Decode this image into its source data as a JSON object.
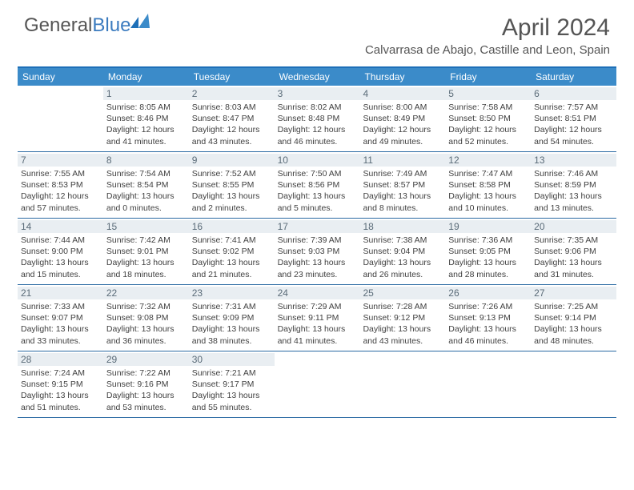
{
  "brand": {
    "part1": "General",
    "part2": "Blue"
  },
  "header": {
    "month_title": "April 2024",
    "location": "Calvarrasa de Abajo, Castille and Leon, Spain"
  },
  "colors": {
    "header_bar": "#3b8bc9",
    "header_border": "#1d6fb8",
    "row_border": "#2b6aa3",
    "daynum_bg": "#e9eef2",
    "daynum_text": "#5a6b78",
    "text": "#404040",
    "brand_blue": "#3b7bbf",
    "brand_gray": "#555555",
    "background": "#ffffff"
  },
  "days_of_week": [
    "Sunday",
    "Monday",
    "Tuesday",
    "Wednesday",
    "Thursday",
    "Friday",
    "Saturday"
  ],
  "weeks": [
    [
      null,
      {
        "n": "1",
        "sunrise": "8:05 AM",
        "sunset": "8:46 PM",
        "day_h": 12,
        "day_m": 41
      },
      {
        "n": "2",
        "sunrise": "8:03 AM",
        "sunset": "8:47 PM",
        "day_h": 12,
        "day_m": 43
      },
      {
        "n": "3",
        "sunrise": "8:02 AM",
        "sunset": "8:48 PM",
        "day_h": 12,
        "day_m": 46
      },
      {
        "n": "4",
        "sunrise": "8:00 AM",
        "sunset": "8:49 PM",
        "day_h": 12,
        "day_m": 49
      },
      {
        "n": "5",
        "sunrise": "7:58 AM",
        "sunset": "8:50 PM",
        "day_h": 12,
        "day_m": 52
      },
      {
        "n": "6",
        "sunrise": "7:57 AM",
        "sunset": "8:51 PM",
        "day_h": 12,
        "day_m": 54
      }
    ],
    [
      {
        "n": "7",
        "sunrise": "7:55 AM",
        "sunset": "8:53 PM",
        "day_h": 12,
        "day_m": 57
      },
      {
        "n": "8",
        "sunrise": "7:54 AM",
        "sunset": "8:54 PM",
        "day_h": 13,
        "day_m": 0
      },
      {
        "n": "9",
        "sunrise": "7:52 AM",
        "sunset": "8:55 PM",
        "day_h": 13,
        "day_m": 2
      },
      {
        "n": "10",
        "sunrise": "7:50 AM",
        "sunset": "8:56 PM",
        "day_h": 13,
        "day_m": 5
      },
      {
        "n": "11",
        "sunrise": "7:49 AM",
        "sunset": "8:57 PM",
        "day_h": 13,
        "day_m": 8
      },
      {
        "n": "12",
        "sunrise": "7:47 AM",
        "sunset": "8:58 PM",
        "day_h": 13,
        "day_m": 10
      },
      {
        "n": "13",
        "sunrise": "7:46 AM",
        "sunset": "8:59 PM",
        "day_h": 13,
        "day_m": 13
      }
    ],
    [
      {
        "n": "14",
        "sunrise": "7:44 AM",
        "sunset": "9:00 PM",
        "day_h": 13,
        "day_m": 15
      },
      {
        "n": "15",
        "sunrise": "7:42 AM",
        "sunset": "9:01 PM",
        "day_h": 13,
        "day_m": 18
      },
      {
        "n": "16",
        "sunrise": "7:41 AM",
        "sunset": "9:02 PM",
        "day_h": 13,
        "day_m": 21
      },
      {
        "n": "17",
        "sunrise": "7:39 AM",
        "sunset": "9:03 PM",
        "day_h": 13,
        "day_m": 23
      },
      {
        "n": "18",
        "sunrise": "7:38 AM",
        "sunset": "9:04 PM",
        "day_h": 13,
        "day_m": 26
      },
      {
        "n": "19",
        "sunrise": "7:36 AM",
        "sunset": "9:05 PM",
        "day_h": 13,
        "day_m": 28
      },
      {
        "n": "20",
        "sunrise": "7:35 AM",
        "sunset": "9:06 PM",
        "day_h": 13,
        "day_m": 31
      }
    ],
    [
      {
        "n": "21",
        "sunrise": "7:33 AM",
        "sunset": "9:07 PM",
        "day_h": 13,
        "day_m": 33
      },
      {
        "n": "22",
        "sunrise": "7:32 AM",
        "sunset": "9:08 PM",
        "day_h": 13,
        "day_m": 36
      },
      {
        "n": "23",
        "sunrise": "7:31 AM",
        "sunset": "9:09 PM",
        "day_h": 13,
        "day_m": 38
      },
      {
        "n": "24",
        "sunrise": "7:29 AM",
        "sunset": "9:11 PM",
        "day_h": 13,
        "day_m": 41
      },
      {
        "n": "25",
        "sunrise": "7:28 AM",
        "sunset": "9:12 PM",
        "day_h": 13,
        "day_m": 43
      },
      {
        "n": "26",
        "sunrise": "7:26 AM",
        "sunset": "9:13 PM",
        "day_h": 13,
        "day_m": 46
      },
      {
        "n": "27",
        "sunrise": "7:25 AM",
        "sunset": "9:14 PM",
        "day_h": 13,
        "day_m": 48
      }
    ],
    [
      {
        "n": "28",
        "sunrise": "7:24 AM",
        "sunset": "9:15 PM",
        "day_h": 13,
        "day_m": 51
      },
      {
        "n": "29",
        "sunrise": "7:22 AM",
        "sunset": "9:16 PM",
        "day_h": 13,
        "day_m": 53
      },
      {
        "n": "30",
        "sunrise": "7:21 AM",
        "sunset": "9:17 PM",
        "day_h": 13,
        "day_m": 55
      },
      null,
      null,
      null,
      null
    ]
  ],
  "labels": {
    "sunrise_prefix": "Sunrise: ",
    "sunset_prefix": "Sunset: ",
    "daylight_prefix": "Daylight: ",
    "hours_word": " hours",
    "and_word": "and ",
    "minutes_word": " minutes."
  }
}
